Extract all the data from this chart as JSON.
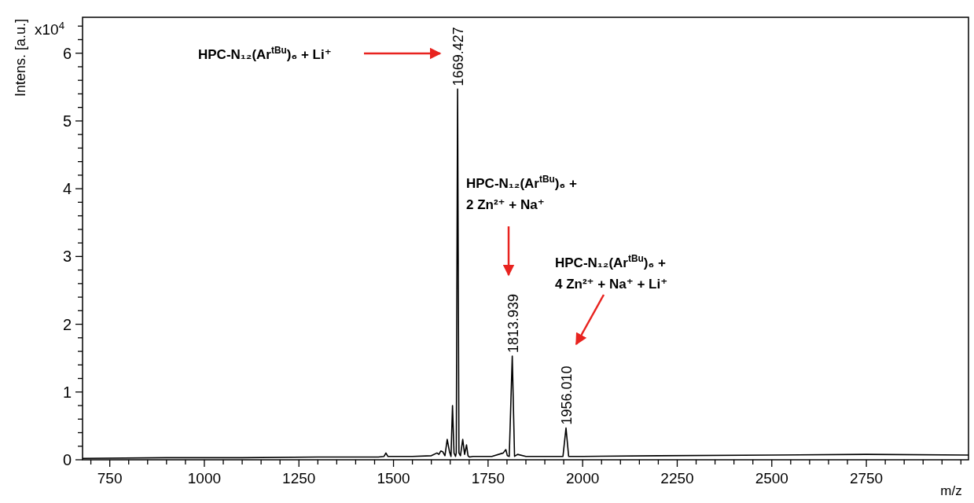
{
  "chart_data": {
    "type": "line",
    "xlabel": "m/z",
    "ylabel": "Intens. [a.u.]",
    "xlim": [
      678,
      3020
    ],
    "ylim": [
      0,
      6.53
    ],
    "xticks": [
      {
        "value": 700,
        "label": null
      },
      750,
      {
        "value": 800,
        "label": null
      },
      {
        "value": 850,
        "label": null
      },
      {
        "value": 900,
        "label": null
      },
      {
        "value": 950,
        "label": null
      },
      1000,
      {
        "value": 1050,
        "label": null
      },
      {
        "value": 1100,
        "label": null
      },
      {
        "value": 1150,
        "label": null
      },
      {
        "value": 1200,
        "label": null
      },
      1250,
      {
        "value": 1300,
        "label": null
      },
      {
        "value": 1350,
        "label": null
      },
      {
        "value": 1400,
        "label": null
      },
      {
        "value": 1450,
        "label": null
      },
      1500,
      {
        "value": 1550,
        "label": null
      },
      {
        "value": 1600,
        "label": null
      },
      {
        "value": 1650,
        "label": null
      },
      {
        "value": 1700,
        "label": null
      },
      1750,
      {
        "value": 1800,
        "label": null
      },
      {
        "value": 1850,
        "label": null
      },
      {
        "value": 1900,
        "label": null
      },
      {
        "value": 1950,
        "label": null
      },
      2000,
      {
        "value": 2050,
        "label": null
      },
      {
        "value": 2100,
        "label": null
      },
      {
        "value": 2150,
        "label": null
      },
      {
        "value": 2200,
        "label": null
      },
      2250,
      {
        "value": 2300,
        "label": null
      },
      {
        "value": 2350,
        "label": null
      },
      {
        "value": 2400,
        "label": null
      },
      {
        "value": 2450,
        "label": null
      },
      2500,
      {
        "value": 2550,
        "label": null
      },
      {
        "value": 2600,
        "label": null
      },
      {
        "value": 2650,
        "label": null
      },
      {
        "value": 2700,
        "label": null
      },
      2750,
      {
        "value": 2800,
        "label": null
      },
      {
        "value": 2850,
        "label": null
      },
      {
        "value": 2900,
        "label": null
      },
      {
        "value": 2950,
        "label": null
      },
      {
        "value": 3000,
        "label": null
      }
    ],
    "yticks": [
      0,
      {
        "value": 0.2,
        "label": null
      },
      {
        "value": 0.4,
        "label": null
      },
      {
        "value": 0.6,
        "label": null
      },
      {
        "value": 0.8,
        "label": null
      },
      1,
      {
        "value": 1.2,
        "label": null
      },
      {
        "value": 1.4,
        "label": null
      },
      {
        "value": 1.6,
        "label": null
      },
      {
        "value": 1.8,
        "label": null
      },
      2,
      {
        "value": 2.2,
        "label": null
      },
      {
        "value": 2.4,
        "label": null
      },
      {
        "value": 2.6,
        "label": null
      },
      {
        "value": 2.8,
        "label": null
      },
      3,
      {
        "value": 3.2,
        "label": null
      },
      {
        "value": 3.4,
        "label": null
      },
      {
        "value": 3.6,
        "label": null
      },
      {
        "value": 3.8,
        "label": null
      },
      4,
      {
        "value": 4.2,
        "label": null
      },
      {
        "value": 4.4,
        "label": null
      },
      {
        "value": 4.6,
        "label": null
      },
      {
        "value": 4.8,
        "label": null
      },
      5,
      {
        "value": 5.2,
        "label": null
      },
      {
        "value": 5.4,
        "label": null
      },
      {
        "value": 5.6,
        "label": null
      },
      {
        "value": 5.8,
        "label": null
      },
      6,
      {
        "value": 6.2,
        "label": null
      },
      {
        "value": 6.4,
        "label": null
      }
    ],
    "grid": false,
    "line_style": "solid",
    "series": [
      {
        "color": "#000000",
        "x": [
          678,
          900,
          1100,
          1300,
          1460,
          1475,
          1480,
          1485,
          1550,
          1600,
          1615,
          1620,
          1625,
          1630,
          1636,
          1642,
          1648,
          1652,
          1656,
          1660,
          1664,
          1666,
          1669.427,
          1673,
          1677,
          1683,
          1688,
          1693,
          1697,
          1701,
          1710,
          1760,
          1790,
          1797,
          1801,
          1806,
          1813.939,
          1820,
          1828,
          1850,
          1900,
          1948,
          1956.01,
          1963,
          2000,
          2200,
          2500,
          2750,
          3020
        ],
        "values": [
          0.02,
          0.03,
          0.03,
          0.04,
          0.04,
          0.05,
          0.1,
          0.05,
          0.05,
          0.06,
          0.1,
          0.08,
          0.13,
          0.12,
          0.06,
          0.3,
          0.12,
          0.05,
          0.8,
          0.1,
          0.05,
          0.1,
          5.47,
          0.1,
          0.06,
          0.3,
          0.08,
          0.22,
          0.06,
          0.04,
          0.05,
          0.05,
          0.1,
          0.15,
          0.06,
          0.05,
          1.53,
          0.05,
          0.08,
          0.05,
          0.05,
          0.05,
          0.47,
          0.05,
          0.05,
          0.06,
          0.07,
          0.08,
          0.07
        ]
      }
    ],
    "annotations": [
      "x10$^{4}$",
      {
        "text": "1669.427",
        "x": 1669.427,
        "y": 5.47
      },
      {
        "text": "1813.939",
        "x": 1813.939,
        "y": 1.53
      },
      {
        "text": "1956.010",
        "x": 1956.01,
        "y": 0.47
      },
      "HPC-N₁₂(Ar$^{tBu}$)₆ + Li⁺",
      "HPC-N₁₂(Ar$^{tBu}$)₆ +\n2 Zn²⁺ + Na⁺",
      "HPC-N₁₂(Ar$^{tBu}$)₆ +\n4 Zn²⁺ + Na⁺ + Li⁺"
    ]
  }
}
